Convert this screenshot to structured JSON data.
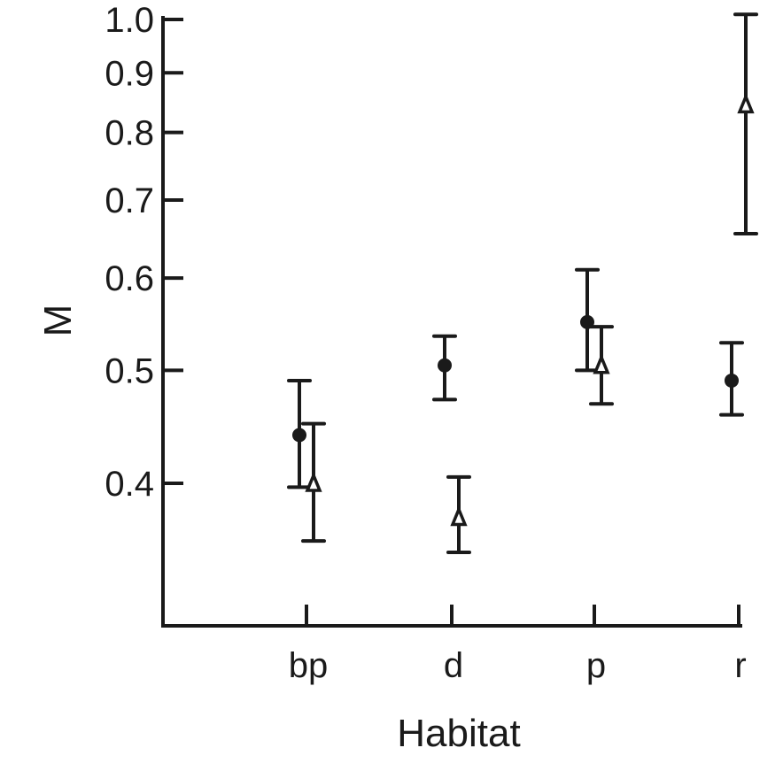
{
  "chart_data": {
    "type": "scatter",
    "title": "",
    "xlabel": "Habitat",
    "ylabel": "M",
    "yscale": "log",
    "ylim": [
      0.32,
      1.0
    ],
    "yticks": [
      0.4,
      0.5,
      0.6,
      0.7,
      0.8,
      0.9,
      1.0
    ],
    "ytick_labels": [
      "0.4",
      "0.5",
      "0.6",
      "0.7",
      "0.8",
      "0.9",
      "1.0"
    ],
    "categories": [
      "bp",
      "d",
      "p",
      "r"
    ],
    "grid": false,
    "legend": null,
    "series": [
      {
        "name": "circle",
        "marker": "filled-circle",
        "values": [
          0.44,
          0.505,
          0.55,
          0.49
        ],
        "lower": [
          0.397,
          0.472,
          0.5,
          0.458
        ],
        "upper": [
          0.49,
          0.535,
          0.61,
          0.528
        ]
      },
      {
        "name": "triangle",
        "marker": "open-triangle",
        "values": [
          0.4,
          0.374,
          0.505,
          0.845
        ],
        "lower": [
          0.357,
          0.349,
          0.468,
          0.655
        ],
        "upper": [
          0.45,
          0.405,
          0.545,
          1.01
        ]
      }
    ]
  }
}
